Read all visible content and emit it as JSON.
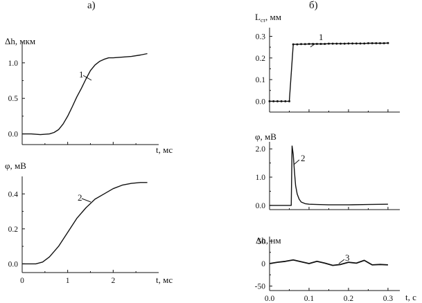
{
  "chart_data": [
    {
      "id": "a1",
      "panel_label": "а)",
      "type": "line",
      "ylabel": "Δh, мкм",
      "xlabel": "t, мс",
      "xlim": [
        0,
        3
      ],
      "ylim": [
        -0.15,
        1.3
      ],
      "xticks": [],
      "yticks": [
        0.0,
        0.5,
        1.0
      ],
      "ytick_labels": [
        "0.0",
        "0.5",
        "1.0"
      ],
      "grid": false,
      "series": [
        {
          "name": "1",
          "x": [
            0.0,
            0.2,
            0.4,
            0.6,
            0.7,
            0.8,
            0.9,
            1.0,
            1.1,
            1.2,
            1.3,
            1.4,
            1.5,
            1.6,
            1.7,
            1.8,
            1.9,
            2.0,
            2.2,
            2.4,
            2.6,
            2.75
          ],
          "y": [
            0.0,
            0.0,
            -0.01,
            0.0,
            0.02,
            0.06,
            0.14,
            0.25,
            0.38,
            0.52,
            0.64,
            0.77,
            0.89,
            0.97,
            1.02,
            1.05,
            1.07,
            1.07,
            1.08,
            1.09,
            1.11,
            1.13
          ]
        }
      ]
    },
    {
      "id": "a2",
      "type": "line",
      "ylabel": "φ, мВ",
      "xlabel": "t, мс",
      "xlim": [
        0,
        3
      ],
      "ylim": [
        -0.05,
        0.5
      ],
      "xticks": [
        0,
        1,
        2
      ],
      "xtick_labels": [
        "0",
        "1",
        "2"
      ],
      "yticks": [
        0.0,
        0.2,
        0.4
      ],
      "ytick_labels": [
        "0.0",
        "0.2",
        "0.4"
      ],
      "grid": false,
      "series": [
        {
          "name": "2",
          "x": [
            0.0,
            0.3,
            0.45,
            0.6,
            0.8,
            1.0,
            1.2,
            1.4,
            1.6,
            1.8,
            2.0,
            2.2,
            2.4,
            2.6,
            2.75
          ],
          "y": [
            0.0,
            0.0,
            0.01,
            0.04,
            0.1,
            0.18,
            0.26,
            0.32,
            0.37,
            0.4,
            0.43,
            0.45,
            0.46,
            0.465,
            0.465
          ]
        }
      ]
    },
    {
      "id": "b1",
      "panel_label": "б)",
      "type": "line",
      "ylabel": "L",
      "ylabel_sub": "ст",
      "ylabel_suffix": ", мм",
      "xlim": [
        0,
        0.33
      ],
      "ylim": [
        -0.05,
        0.34
      ],
      "xticks": [],
      "yticks": [
        0.0,
        0.1,
        0.2,
        0.3
      ],
      "ytick_labels": [
        "0.0",
        "0.1",
        "0.2",
        "0.3"
      ],
      "grid": false,
      "markers": true,
      "series": [
        {
          "name": "1",
          "x": [
            0.0,
            0.01,
            0.02,
            0.03,
            0.04,
            0.05,
            0.06,
            0.07,
            0.08,
            0.09,
            0.1,
            0.11,
            0.12,
            0.13,
            0.14,
            0.15,
            0.16,
            0.17,
            0.18,
            0.19,
            0.2,
            0.21,
            0.22,
            0.23,
            0.24,
            0.25,
            0.26,
            0.27,
            0.28,
            0.29,
            0.3
          ],
          "y": [
            0.0,
            0.0,
            0.0,
            0.0,
            0.0,
            0.0,
            0.263,
            0.263,
            0.264,
            0.264,
            0.265,
            0.265,
            0.265,
            0.265,
            0.265,
            0.266,
            0.266,
            0.266,
            0.266,
            0.266,
            0.267,
            0.267,
            0.267,
            0.267,
            0.267,
            0.268,
            0.268,
            0.268,
            0.268,
            0.268,
            0.269
          ]
        }
      ]
    },
    {
      "id": "b2",
      "type": "line",
      "ylabel": "φ, мВ",
      "xlim": [
        0,
        0.33
      ],
      "ylim": [
        -0.15,
        2.25
      ],
      "xticks": [],
      "yticks": [
        0.0,
        1.0,
        2.0
      ],
      "ytick_labels": [
        "0.0",
        "1.0",
        "2.0"
      ],
      "grid": false,
      "series": [
        {
          "name": "2",
          "x": [
            0.0,
            0.05,
            0.055,
            0.057,
            0.06,
            0.063,
            0.066,
            0.07,
            0.075,
            0.08,
            0.09,
            0.1,
            0.12,
            0.15,
            0.2,
            0.25,
            0.3
          ],
          "y": [
            0.0,
            0.0,
            0.0,
            2.1,
            1.8,
            1.2,
            0.7,
            0.4,
            0.22,
            0.12,
            0.06,
            0.04,
            0.03,
            0.02,
            0.02,
            0.03,
            0.04
          ]
        }
      ]
    },
    {
      "id": "b3",
      "type": "line",
      "ylabel": "Δh, нм",
      "xlabel": "t, с",
      "xlim": [
        0,
        0.33
      ],
      "ylim": [
        -60,
        60
      ],
      "xticks": [
        0.0,
        0.1,
        0.2,
        0.3
      ],
      "xtick_labels": [
        "0.0",
        "0.1",
        "0.2",
        "0.3"
      ],
      "yticks": [
        -50,
        0,
        50
      ],
      "ytick_labels": [
        "-50",
        "0",
        "50"
      ],
      "grid": false,
      "series": [
        {
          "name": "3",
          "x": [
            0.0,
            0.02,
            0.04,
            0.06,
            0.08,
            0.1,
            0.12,
            0.14,
            0.16,
            0.18,
            0.2,
            0.22,
            0.24,
            0.26,
            0.28,
            0.3
          ],
          "y": [
            0,
            3,
            5,
            8,
            4,
            0,
            5,
            1,
            -4,
            -2,
            3,
            1,
            7,
            -3,
            -2,
            -3
          ]
        }
      ]
    }
  ]
}
